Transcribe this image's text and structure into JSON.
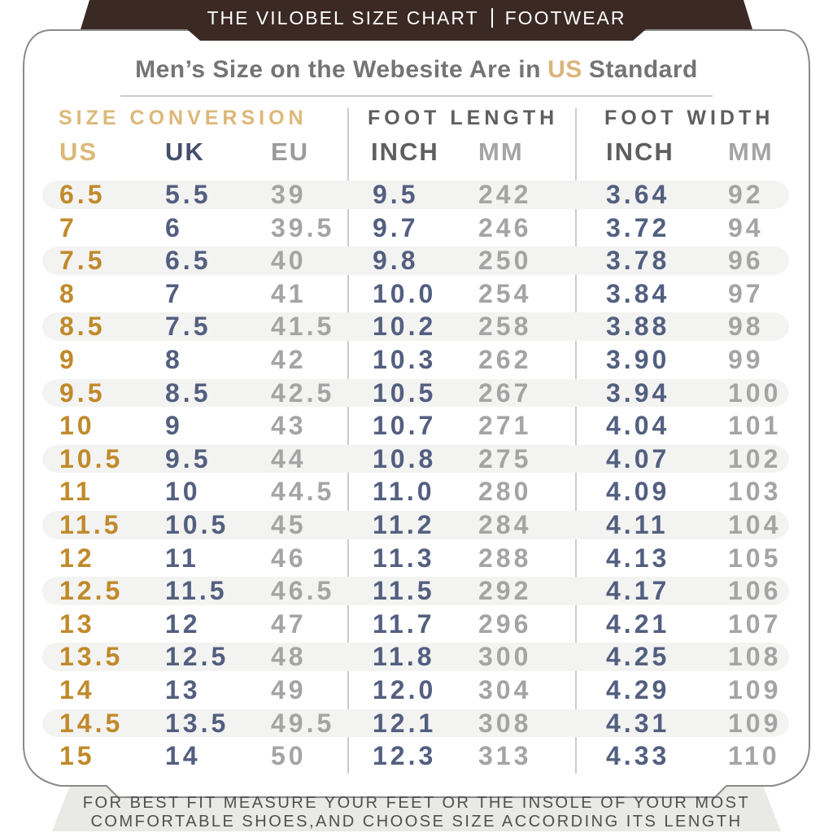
{
  "banner": {
    "title_left": "THE VILOBEL SIZE CHART",
    "title_right": "FOOTWEAR"
  },
  "title": {
    "prefix": "Men’s Size on the Webesite Are in",
    "highlight": "US",
    "suffix": "Standard"
  },
  "sections": [
    {
      "label": "SIZE CONVERSION"
    },
    {
      "label": "FOOT LENGTH"
    },
    {
      "label": "FOOT WIDTH"
    }
  ],
  "columns": [
    "US",
    "UK",
    "EU",
    "INCH",
    "MM",
    "INCH",
    "MM"
  ],
  "table": {
    "rows": [
      [
        "6.5",
        "5.5",
        "39",
        "9.5",
        "242",
        "3.64",
        "92"
      ],
      [
        "7",
        "6",
        "39.5",
        "9.7",
        "246",
        "3.72",
        "94"
      ],
      [
        "7.5",
        "6.5",
        "40",
        "9.8",
        "250",
        "3.78",
        "96"
      ],
      [
        "8",
        "7",
        "41",
        "10.0",
        "254",
        "3.84",
        "97"
      ],
      [
        "8.5",
        "7.5",
        "41.5",
        "10.2",
        "258",
        "3.88",
        "98"
      ],
      [
        "9",
        "8",
        "42",
        "10.3",
        "262",
        "3.90",
        "99"
      ],
      [
        "9.5",
        "8.5",
        "42.5",
        "10.5",
        "267",
        "3.94",
        "100"
      ],
      [
        "10",
        "9",
        "43",
        "10.7",
        "271",
        "4.04",
        "101"
      ],
      [
        "10.5",
        "9.5",
        "44",
        "10.8",
        "275",
        "4.07",
        "102"
      ],
      [
        "11",
        "10",
        "44.5",
        "11.0",
        "280",
        "4.09",
        "103"
      ],
      [
        "11.5",
        "10.5",
        "45",
        "11.2",
        "284",
        "4.11",
        "104"
      ],
      [
        "12",
        "11",
        "46",
        "11.3",
        "288",
        "4.13",
        "105"
      ],
      [
        "12.5",
        "11.5",
        "46.5",
        "11.5",
        "292",
        "4.17",
        "106"
      ],
      [
        "13",
        "12",
        "47",
        "11.7",
        "296",
        "4.21",
        "107"
      ],
      [
        "13.5",
        "12.5",
        "48",
        "11.8",
        "300",
        "4.25",
        "108"
      ],
      [
        "14",
        "13",
        "49",
        "12.0",
        "304",
        "4.29",
        "109"
      ],
      [
        "14.5",
        "13.5",
        "49.5",
        "12.1",
        "308",
        "4.31",
        "109"
      ],
      [
        "15",
        "14",
        "50",
        "12.3",
        "313",
        "4.33",
        "110"
      ]
    ]
  },
  "footer": {
    "line1": "FOR BEST FIT MEASURE YOUR FEET OR THE INSOLE OF YOUR MOST",
    "line2": "COMFORTABLE SHOES,AND CHOOSE SIZE ACCORDING ITS LENGTH"
  },
  "colors": {
    "banner_brown": "#3a2a23",
    "gold_light": "#dcb97a",
    "gold_dark": "#c08a2b",
    "navy": "#535f80",
    "navy_header": "#454f6d",
    "gray_text": "#a4a4a4",
    "dark_gray_header": "#5f5f5f",
    "row_stripe": "#f3f3f1",
    "footer_bg": "#e9e9e6",
    "card_border": "#8a8a8a"
  }
}
